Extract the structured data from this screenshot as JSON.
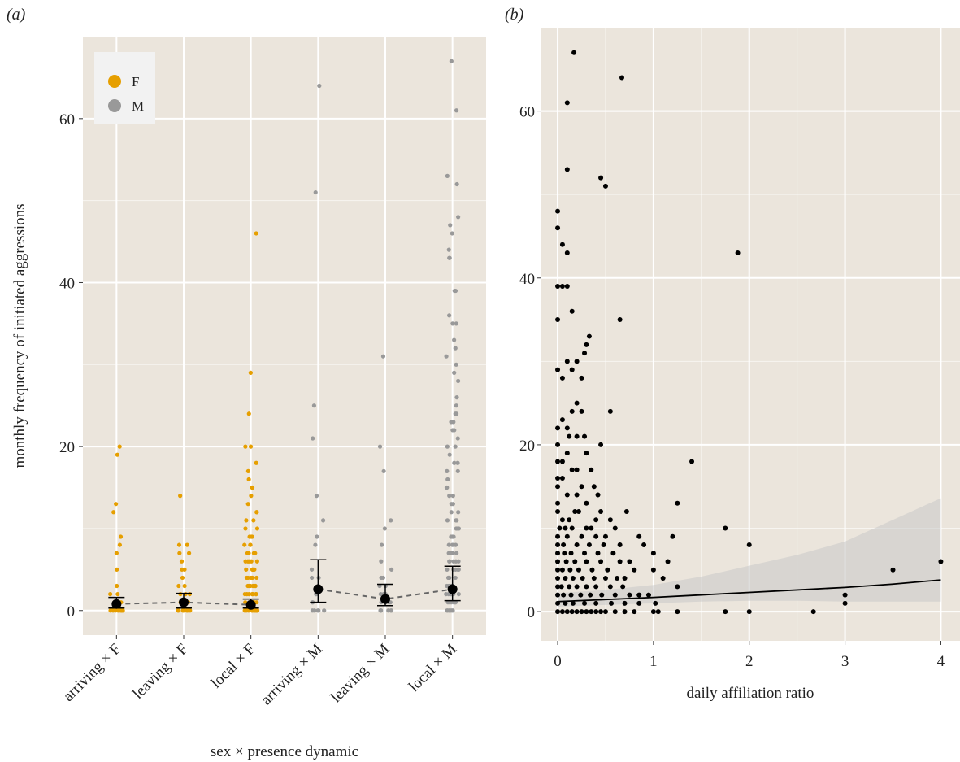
{
  "chart_data": [
    {
      "panel_label": "(a)",
      "type": "scatter",
      "xlabel": "sex × presence dynamic",
      "ylabel": "monthly frequency of initiated aggressions",
      "ylim": [
        -3,
        70
      ],
      "yticks": [
        0,
        20,
        40,
        60
      ],
      "grid": true,
      "legend": {
        "placement": "top-left",
        "entries": [
          {
            "label": "F",
            "color": "#E69F00"
          },
          {
            "label": "M",
            "color": "#999999"
          }
        ]
      },
      "categories": [
        "arriving × F",
        "leaving × F",
        "local × F",
        "arriving × M",
        "leaving × M",
        "local × M"
      ],
      "series": [
        {
          "name": "F",
          "color": "#E69F00",
          "category": "arriving × F",
          "values": [
            20,
            19,
            13,
            12,
            9,
            8,
            7,
            5,
            3,
            2,
            2,
            1,
            1,
            1,
            1,
            0,
            0,
            0,
            0,
            0,
            0,
            0,
            0,
            0
          ]
        },
        {
          "name": "F",
          "color": "#E69F00",
          "category": "leaving × F",
          "values": [
            14,
            8,
            8,
            7,
            7,
            6,
            5,
            5,
            4,
            3,
            3,
            2,
            2,
            2,
            1,
            1,
            1,
            1,
            0,
            0,
            0,
            0,
            0,
            0,
            0
          ]
        },
        {
          "name": "F",
          "color": "#E69F00",
          "category": "local × F",
          "values": [
            46,
            29,
            24,
            20,
            20,
            18,
            17,
            16,
            15,
            15,
            14,
            13,
            12,
            12,
            11,
            11,
            10,
            10,
            9,
            9,
            9,
            8,
            8,
            8,
            7,
            7,
            7,
            7,
            6,
            6,
            6,
            6,
            6,
            5,
            5,
            5,
            5,
            5,
            4,
            4,
            4,
            4,
            4,
            4,
            3,
            3,
            3,
            3,
            3,
            3,
            2,
            2,
            2,
            2,
            2,
            2,
            2,
            1,
            1,
            1,
            1,
            1,
            1,
            1,
            1,
            0,
            0,
            0,
            0,
            0,
            0,
            0,
            0,
            0,
            0,
            0,
            0
          ]
        },
        {
          "name": "M",
          "color": "#999999",
          "category": "arriving × M",
          "values": [
            64,
            51,
            25,
            21,
            14,
            11,
            9,
            8,
            5,
            4,
            4,
            3,
            2,
            2,
            1,
            1,
            0,
            0,
            0,
            0,
            0
          ]
        },
        {
          "name": "M",
          "color": "#999999",
          "category": "leaving × M",
          "values": [
            31,
            20,
            17,
            11,
            10,
            8,
            6,
            5,
            4,
            4,
            3,
            3,
            2,
            2,
            2,
            1,
            1,
            1,
            1,
            0,
            0,
            0,
            0,
            0,
            0
          ]
        },
        {
          "name": "M",
          "color": "#999999",
          "category": "local × M",
          "values": [
            67,
            61,
            53,
            52,
            48,
            47,
            46,
            44,
            43,
            43,
            39,
            39,
            36,
            35,
            35,
            33,
            32,
            31,
            30,
            29,
            28,
            26,
            25,
            24,
            24,
            23,
            23,
            22,
            22,
            21,
            20,
            20,
            19,
            18,
            18,
            17,
            17,
            16,
            15,
            15,
            14,
            14,
            13,
            13,
            12,
            12,
            11,
            11,
            11,
            10,
            10,
            10,
            9,
            9,
            9,
            8,
            8,
            8,
            8,
            7,
            7,
            7,
            7,
            6,
            6,
            6,
            6,
            6,
            5,
            5,
            5,
            5,
            5,
            4,
            4,
            4,
            4,
            4,
            3,
            3,
            3,
            3,
            3,
            2,
            2,
            2,
            2,
            2,
            2,
            1,
            1,
            1,
            1,
            1,
            1,
            0,
            0,
            0,
            0,
            0,
            0,
            0
          ]
        }
      ],
      "estimates": [
        {
          "category": "arriving × F",
          "mean": 0.8,
          "lower": 0.3,
          "upper": 1.6
        },
        {
          "category": "leaving × F",
          "mean": 1.0,
          "lower": 0.3,
          "upper": 2.1
        },
        {
          "category": "local × F",
          "mean": 0.7,
          "lower": 0.3,
          "upper": 1.4
        },
        {
          "category": "arriving × M",
          "mean": 2.6,
          "lower": 1.0,
          "upper": 6.2
        },
        {
          "category": "leaving × M",
          "mean": 1.4,
          "lower": 0.6,
          "upper": 3.2
        },
        {
          "category": "local × M",
          "mean": 2.6,
          "lower": 1.2,
          "upper": 5.4
        }
      ]
    },
    {
      "panel_label": "(b)",
      "type": "scatter",
      "xlabel": "daily affiliation ratio",
      "ylabel": "",
      "xlim": [
        -0.17,
        4.2
      ],
      "ylim": [
        -3.5,
        70
      ],
      "xticks": [
        0,
        1,
        2,
        3,
        4
      ],
      "yticks": [
        0,
        20,
        40,
        60
      ],
      "grid": true,
      "points": [
        [
          0.17,
          67
        ],
        [
          0.67,
          64
        ],
        [
          0.1,
          61
        ],
        [
          0.1,
          53
        ],
        [
          0.45,
          52
        ],
        [
          0.5,
          51
        ],
        [
          0,
          48
        ],
        [
          0,
          46
        ],
        [
          0.05,
          44
        ],
        [
          0.1,
          43
        ],
        [
          1.88,
          43
        ],
        [
          0,
          39
        ],
        [
          0.05,
          39
        ],
        [
          0.1,
          39
        ],
        [
          0.15,
          36
        ],
        [
          0,
          35
        ],
        [
          0.65,
          35
        ],
        [
          0.33,
          33
        ],
        [
          0.3,
          32
        ],
        [
          0.28,
          31
        ],
        [
          0.1,
          30
        ],
        [
          0.2,
          30
        ],
        [
          0,
          29
        ],
        [
          0.15,
          29
        ],
        [
          0.25,
          28
        ],
        [
          0.05,
          28
        ],
        [
          0.2,
          25
        ],
        [
          0.15,
          24
        ],
        [
          0.55,
          24
        ],
        [
          0.25,
          24
        ],
        [
          0.05,
          23
        ],
        [
          0,
          22
        ],
        [
          0.1,
          22
        ],
        [
          0.12,
          21
        ],
        [
          0.2,
          21
        ],
        [
          0.28,
          21
        ],
        [
          0,
          20
        ],
        [
          0.45,
          20
        ],
        [
          0.1,
          19
        ],
        [
          0.3,
          19
        ],
        [
          1.4,
          18
        ],
        [
          0,
          18
        ],
        [
          0.05,
          18
        ],
        [
          0.2,
          17
        ],
        [
          0.35,
          17
        ],
        [
          0.15,
          17
        ],
        [
          0.05,
          16
        ],
        [
          0,
          16
        ],
        [
          0.25,
          15
        ],
        [
          0.38,
          15
        ],
        [
          0,
          15
        ],
        [
          0.1,
          14
        ],
        [
          0.42,
          14
        ],
        [
          0.2,
          14
        ],
        [
          1.75,
          10
        ],
        [
          1.25,
          13
        ],
        [
          0,
          13
        ],
        [
          0.3,
          13
        ],
        [
          0.55,
          11
        ],
        [
          0.4,
          11
        ],
        [
          0.72,
          12
        ],
        [
          0.18,
          12
        ],
        [
          0.22,
          12
        ],
        [
          0,
          12
        ],
        [
          0.05,
          11
        ],
        [
          0.12,
          11
        ],
        [
          0.45,
          12
        ],
        [
          0.3,
          10
        ],
        [
          0.02,
          10
        ],
        [
          0.08,
          10
        ],
        [
          0.15,
          10
        ],
        [
          0.35,
          10
        ],
        [
          0.6,
          10
        ],
        [
          1.2,
          9
        ],
        [
          0,
          9
        ],
        [
          0.1,
          9
        ],
        [
          0.25,
          9
        ],
        [
          0.4,
          9
        ],
        [
          0.5,
          9
        ],
        [
          0.85,
          9
        ],
        [
          2,
          8
        ],
        [
          0,
          8
        ],
        [
          0.06,
          8
        ],
        [
          0.2,
          8
        ],
        [
          0.33,
          8
        ],
        [
          0.48,
          8
        ],
        [
          0.9,
          8
        ],
        [
          0.65,
          8
        ],
        [
          1.0,
          7
        ],
        [
          0,
          7
        ],
        [
          0.07,
          7
        ],
        [
          0.14,
          7
        ],
        [
          0.28,
          7
        ],
        [
          0.42,
          7
        ],
        [
          0.58,
          7
        ],
        [
          0.75,
          6
        ],
        [
          1.15,
          6
        ],
        [
          4,
          6
        ],
        [
          0,
          6
        ],
        [
          0.09,
          6
        ],
        [
          0.18,
          6
        ],
        [
          0.3,
          6
        ],
        [
          0.45,
          6
        ],
        [
          0.65,
          6
        ],
        [
          0.8,
          5
        ],
        [
          1.0,
          5
        ],
        [
          3.5,
          5
        ],
        [
          0,
          5
        ],
        [
          0.05,
          5
        ],
        [
          0.13,
          5
        ],
        [
          0.22,
          5
        ],
        [
          0.36,
          5
        ],
        [
          0.52,
          5
        ],
        [
          0.7,
          4
        ],
        [
          1.1,
          4
        ],
        [
          0,
          4
        ],
        [
          0.08,
          4
        ],
        [
          0.16,
          4
        ],
        [
          0.26,
          4
        ],
        [
          0.38,
          4
        ],
        [
          0.5,
          4
        ],
        [
          0.62,
          4
        ],
        [
          1.25,
          3
        ],
        [
          0,
          3
        ],
        [
          0.04,
          3
        ],
        [
          0.12,
          3
        ],
        [
          0.2,
          3
        ],
        [
          0.3,
          3
        ],
        [
          0.4,
          3
        ],
        [
          0.55,
          3
        ],
        [
          0.68,
          3
        ],
        [
          0.85,
          2
        ],
        [
          0.95,
          2
        ],
        [
          3,
          2
        ],
        [
          0,
          2
        ],
        [
          0.06,
          2
        ],
        [
          0.14,
          2
        ],
        [
          0.24,
          2
        ],
        [
          0.34,
          2
        ],
        [
          0.46,
          2
        ],
        [
          0.6,
          2
        ],
        [
          0.75,
          2
        ],
        [
          1.02,
          1
        ],
        [
          0,
          1
        ],
        [
          0.08,
          1
        ],
        [
          0.16,
          1
        ],
        [
          0.28,
          1
        ],
        [
          0.4,
          1
        ],
        [
          0.56,
          1
        ],
        [
          0.7,
          1
        ],
        [
          0.85,
          1
        ],
        [
          3,
          1
        ],
        [
          0,
          0
        ],
        [
          0.05,
          0
        ],
        [
          0.1,
          0
        ],
        [
          0.15,
          0
        ],
        [
          0.2,
          0
        ],
        [
          0.25,
          0
        ],
        [
          0.3,
          0
        ],
        [
          0.35,
          0
        ],
        [
          0.4,
          0
        ],
        [
          0.45,
          0
        ],
        [
          0.5,
          0
        ],
        [
          0.6,
          0
        ],
        [
          0.7,
          0
        ],
        [
          0.8,
          0
        ],
        [
          1.0,
          0
        ],
        [
          1.05,
          0
        ],
        [
          1.25,
          0
        ],
        [
          1.75,
          0
        ],
        [
          2,
          0
        ],
        [
          2.67,
          0
        ]
      ],
      "fit": {
        "x": [
          0,
          0.5,
          1,
          1.5,
          2,
          2.5,
          3,
          3.5,
          4
        ],
        "y": [
          1.2,
          1.45,
          1.7,
          2.0,
          2.3,
          2.6,
          2.9,
          3.3,
          3.8
        ]
      },
      "ribbon": {
        "x": [
          0,
          0.5,
          1,
          1.5,
          2,
          2.5,
          3,
          3.5,
          4
        ],
        "lower": [
          0.6,
          0.8,
          1.0,
          1.2,
          1.3,
          1.3,
          1.2,
          1.2,
          1.2
        ],
        "upper": [
          2.2,
          2.6,
          3.2,
          4.2,
          5.5,
          6.8,
          8.4,
          11,
          13.6
        ]
      }
    }
  ]
}
